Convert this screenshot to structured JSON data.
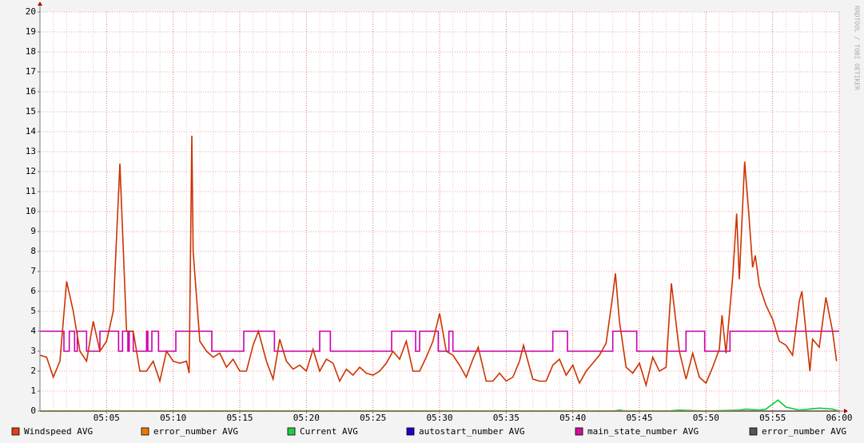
{
  "chart_data": {
    "type": "line",
    "watermark": "RRDTOOL / TOBI OETIKER",
    "xlim": [
      0,
      60
    ],
    "xticks": [
      {
        "value": 5,
        "label": "05:05"
      },
      {
        "value": 10,
        "label": "05:10"
      },
      {
        "value": 15,
        "label": "05:15"
      },
      {
        "value": 20,
        "label": "05:20"
      },
      {
        "value": 25,
        "label": "05:25"
      },
      {
        "value": 30,
        "label": "05:30"
      },
      {
        "value": 35,
        "label": "05:35"
      },
      {
        "value": 40,
        "label": "05:40"
      },
      {
        "value": 45,
        "label": "05:45"
      },
      {
        "value": 50,
        "label": "05:50"
      },
      {
        "value": 55,
        "label": "05:55"
      },
      {
        "value": 60,
        "label": "06:00"
      }
    ],
    "ylim": [
      0,
      20
    ],
    "yticks": [
      0,
      1,
      2,
      3,
      4,
      5,
      6,
      7,
      8,
      9,
      10,
      11,
      12,
      13,
      14,
      15,
      16,
      17,
      18,
      19,
      20
    ],
    "grid": true,
    "series": [
      {
        "name": "Windspeed AVG",
        "color": "#cc3300",
        "swatch": "#dd4411",
        "step": false,
        "x": [
          0,
          0.5,
          1,
          1.5,
          2,
          2.5,
          3,
          3.5,
          4,
          4.5,
          5,
          5.5,
          6,
          6.5,
          7,
          7.5,
          8,
          8.5,
          9,
          9.5,
          10,
          10.5,
          11,
          11.2,
          11.4,
          11.5,
          12,
          12.5,
          13,
          13.5,
          14,
          14.5,
          15,
          15.5,
          16,
          16.4,
          17,
          17.5,
          18,
          18.5,
          19,
          19.5,
          20,
          20.5,
          21,
          21.5,
          22,
          22.5,
          23,
          23.5,
          24,
          24.5,
          25,
          25.5,
          26,
          26.5,
          27,
          27.5,
          28,
          28.5,
          29,
          29.5,
          30,
          30.5,
          31,
          31.5,
          32,
          32.5,
          32.9,
          33.5,
          34,
          34.5,
          35,
          35.5,
          36,
          36.3,
          37,
          37.5,
          38,
          38.5,
          39,
          39.5,
          40,
          40.5,
          41,
          41.5,
          42,
          42.5,
          43,
          43.2,
          43.5,
          44,
          44.5,
          45,
          45.5,
          46,
          46.5,
          47,
          47.4,
          48,
          48.5,
          49,
          49.5,
          50,
          50.5,
          51,
          51.2,
          51.5,
          52,
          52.3,
          52.5,
          52.9,
          53.2,
          53.5,
          53.7,
          54,
          54.5,
          55,
          55.5,
          56,
          56.5,
          57,
          57.2,
          57.5,
          57.8,
          58,
          58.5,
          59,
          59.5,
          59.8
        ],
        "values": [
          2.8,
          2.7,
          1.7,
          2.5,
          6.5,
          5,
          3,
          2.5,
          4.5,
          3,
          3.5,
          5,
          12.4,
          4,
          4,
          2,
          2,
          2.5,
          1.5,
          3,
          2.5,
          2.4,
          2.5,
          1.9,
          13.8,
          8,
          3.5,
          3,
          2.7,
          2.9,
          2.2,
          2.6,
          2,
          2,
          3.3,
          4,
          2.5,
          1.6,
          3.6,
          2.5,
          2.1,
          2.3,
          2,
          3.1,
          2,
          2.6,
          2.4,
          1.5,
          2.1,
          1.8,
          2.2,
          1.9,
          1.8,
          2,
          2.4,
          3,
          2.6,
          3.5,
          2,
          2,
          2.7,
          3.5,
          4.9,
          3,
          2.8,
          2.3,
          1.7,
          2.6,
          3.2,
          1.5,
          1.5,
          1.9,
          1.5,
          1.7,
          2.5,
          3.3,
          1.6,
          1.5,
          1.5,
          2.3,
          2.6,
          1.8,
          2.3,
          1.4,
          2,
          2.4,
          2.8,
          3.4,
          5.8,
          6.9,
          4.5,
          2.2,
          1.9,
          2.4,
          1.3,
          2.7,
          2,
          2.2,
          6.4,
          3,
          1.6,
          2.9,
          1.7,
          1.4,
          2.2,
          3.1,
          4.8,
          2.9,
          6.7,
          9.9,
          6.6,
          12.5,
          10,
          7.2,
          7.8,
          6.3,
          5.3,
          4.6,
          3.5,
          3.3,
          2.8,
          5.5,
          6,
          4,
          2,
          3.6,
          3.2,
          5.7,
          4,
          2.5
        ]
      },
      {
        "name": "error_number AVG",
        "color": "#ee7700",
        "swatch": "#ee7700",
        "step": false,
        "x": [
          0,
          60
        ],
        "values": [
          0,
          0
        ]
      },
      {
        "name": "Current AVG",
        "color": "#00cc33",
        "swatch": "#22cc44",
        "step": false,
        "x": [
          0,
          43,
          43.5,
          44,
          47,
          48,
          50,
          52.5,
          53,
          54,
          54.5,
          55.4,
          56,
          57,
          58.5,
          59.5,
          60
        ],
        "values": [
          0,
          0,
          0.05,
          0,
          0,
          0.05,
          0,
          0.05,
          0.1,
          0.05,
          0.1,
          0.55,
          0.2,
          0.05,
          0.15,
          0.1,
          0
        ]
      },
      {
        "name": "autostart_number AVG",
        "color": "#2200cc",
        "swatch": "#2200cc",
        "step": false,
        "x": [
          0,
          60
        ],
        "values": [
          0,
          0
        ]
      },
      {
        "name": "main_state_number AVG",
        "color": "#cc00aa",
        "swatch": "#cc1199",
        "step": true,
        "x": [
          0,
          1.8,
          2.2,
          2.6,
          2.8,
          3.5,
          4.5,
          5.9,
          6.2,
          6.6,
          6.7,
          7.0,
          8.0,
          8.1,
          8.4,
          8.9,
          10.2,
          12.9,
          15.3,
          17.6,
          21.0,
          21.8,
          26.4,
          28.2,
          28.5,
          29.9,
          30.7,
          31.0,
          38.5,
          39.6,
          43.0,
          44.8,
          48.5,
          49.9,
          51.8,
          60
        ],
        "values": [
          4,
          3,
          4,
          3,
          4,
          3,
          4,
          3,
          4,
          3,
          4,
          3,
          4,
          3,
          4,
          3,
          4,
          3,
          4,
          3,
          4,
          3,
          4,
          3,
          4,
          3,
          4,
          3,
          4,
          3,
          4,
          3,
          4,
          3,
          4,
          4
        ]
      },
      {
        "name": "error_number AVG",
        "color": "#555555",
        "swatch": "#555555",
        "step": false,
        "x": [
          0,
          60
        ],
        "values": [
          0,
          0
        ]
      }
    ]
  }
}
